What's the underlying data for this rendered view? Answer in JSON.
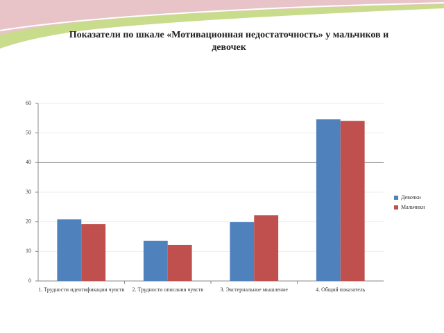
{
  "chart_data": {
    "type": "bar",
    "title": "Показатели по шкале «Мотивационная недостаточность» у мальчиков и девочек",
    "categories": [
      "1. Трудности идентификации чувств",
      "2. Трудности описания чувств",
      "3. Экстернальное мышление",
      "4. Общий показатель"
    ],
    "series": [
      {
        "name": "Девочки",
        "color": "#4f81bd",
        "values": [
          20.8,
          13.6,
          19.9,
          54.6
        ]
      },
      {
        "name": "Мальчики",
        "color": "#c0504d",
        "values": [
          19.2,
          12.2,
          22.2,
          54.1
        ]
      }
    ],
    "ylim": [
      0,
      60
    ],
    "yticks": [
      0,
      10,
      20,
      30,
      40,
      50,
      60
    ],
    "grid": true,
    "legend": "right"
  }
}
